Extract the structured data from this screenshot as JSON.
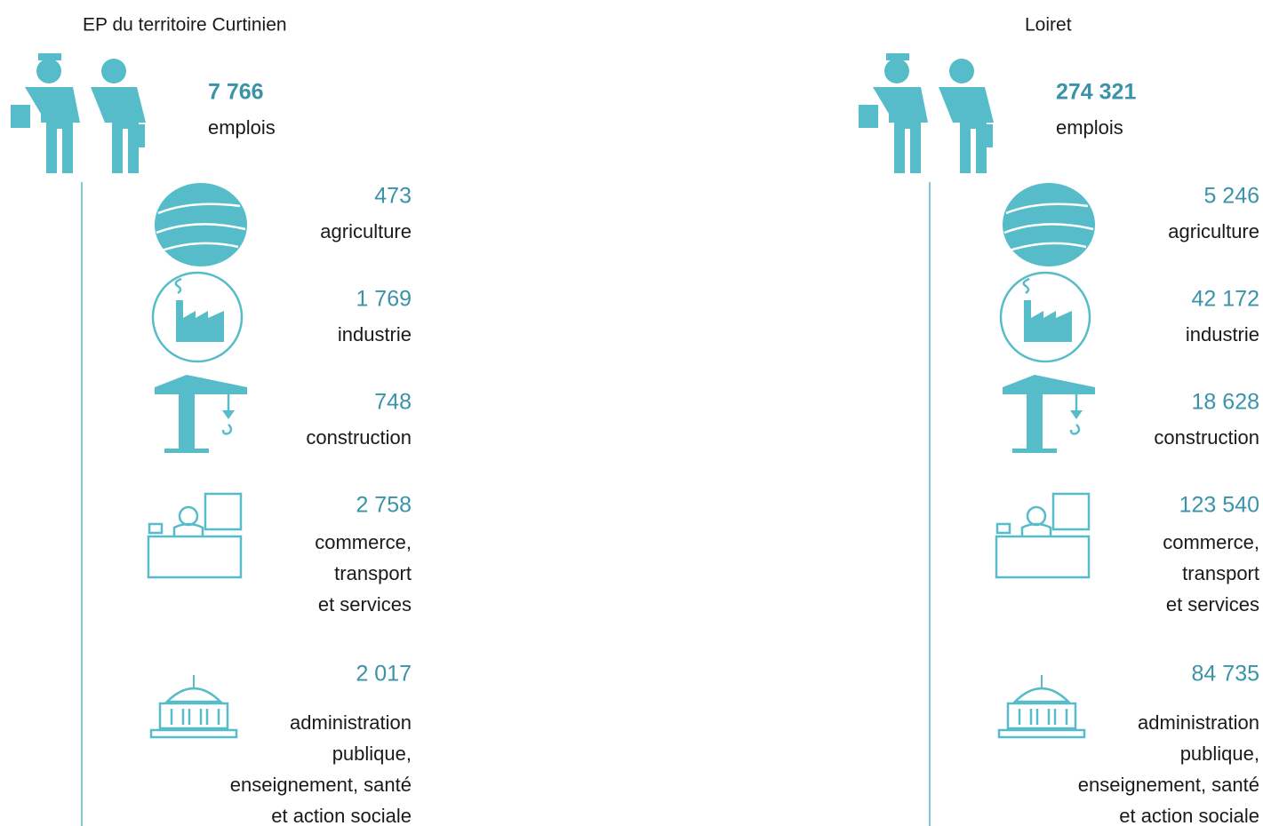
{
  "panels": [
    {
      "title": "EP du territoire Curtinien",
      "total": {
        "value": "7 766",
        "label": "emplois"
      },
      "sectors": [
        {
          "value": "473",
          "label": [
            "agriculture"
          ]
        },
        {
          "value": "1 769",
          "label": [
            "industrie"
          ]
        },
        {
          "value": "748",
          "label": [
            "construction"
          ]
        },
        {
          "value": "2 758",
          "label": [
            "commerce,",
            "transport",
            "et services"
          ]
        },
        {
          "value": "2 017",
          "label": [
            "administration",
            "publique,",
            "enseignement, santé",
            "et action sociale"
          ]
        }
      ]
    },
    {
      "title": "Loiret",
      "total": {
        "value": "274 321",
        "label": "emplois"
      },
      "sectors": [
        {
          "value": "5 246",
          "label": [
            "agriculture"
          ]
        },
        {
          "value": "42 172",
          "label": [
            "industrie"
          ]
        },
        {
          "value": "18 628",
          "label": [
            "construction"
          ]
        },
        {
          "value": "123 540",
          "label": [
            "commerce,",
            "transport",
            "et services"
          ]
        },
        {
          "value": "84 735",
          "label": [
            "administration",
            "publique,",
            "enseignement, santé",
            "et action sociale"
          ]
        }
      ]
    }
  ]
}
